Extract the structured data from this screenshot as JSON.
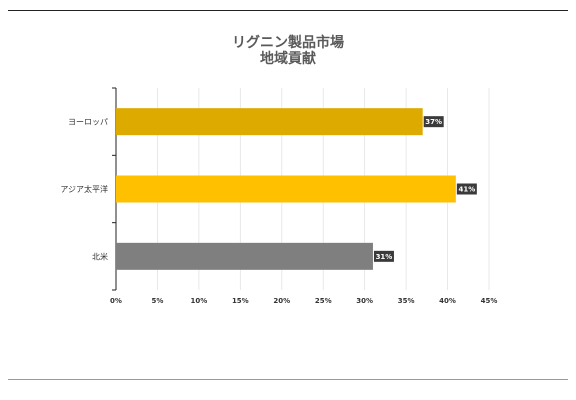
{
  "chart_data": {
    "type": "bar",
    "orientation": "horizontal",
    "title_lines": [
      "リグニン製品市場",
      "地域貢献"
    ],
    "categories": [
      "ヨーロッパ",
      "アジア太平洋",
      "北米"
    ],
    "values": [
      37,
      41,
      31
    ],
    "value_labels": [
      "37%",
      "41%",
      "31%"
    ],
    "colors": [
      "#DDAA00",
      "#FFC000",
      "#7F7F7F"
    ],
    "xlim": [
      0,
      45
    ],
    "xticks": [
      0,
      5,
      10,
      15,
      20,
      25,
      30,
      35,
      40,
      45
    ],
    "xtick_labels": [
      "0%",
      "5%",
      "10%",
      "15%",
      "20%",
      "25%",
      "30%",
      "35%",
      "40%",
      "45%"
    ],
    "xlabel": "",
    "ylabel": "",
    "grid": true,
    "legend": false
  }
}
